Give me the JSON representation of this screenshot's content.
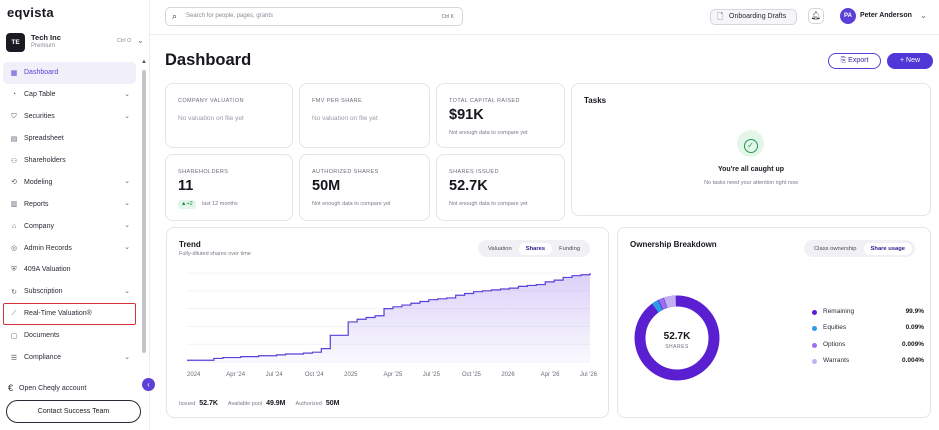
{
  "brand": {
    "logo": "eqvista",
    "accent": "#5b3fd6",
    "primary_button": "#4f37d8"
  },
  "company": {
    "initials": "TE",
    "name": "Tech Inc",
    "plan": "Premium",
    "shortcut": "Ctrl O"
  },
  "sidebar": {
    "items": [
      {
        "label": "Dashboard",
        "icon": "grid-icon",
        "active": true,
        "expandable": false
      },
      {
        "label": "Cap Table",
        "icon": "pie-chart-icon",
        "expandable": true
      },
      {
        "label": "Securities",
        "icon": "securities-icon",
        "expandable": true
      },
      {
        "label": "Spreadsheet",
        "icon": "spreadsheet-icon",
        "expandable": false
      },
      {
        "label": "Shareholders",
        "icon": "users-icon",
        "expandable": false
      },
      {
        "label": "Modeling",
        "icon": "modeling-icon",
        "expandable": true
      },
      {
        "label": "Reports",
        "icon": "reports-icon",
        "expandable": true
      },
      {
        "label": "Company",
        "icon": "company-icon",
        "expandable": true
      },
      {
        "label": "Admin Records",
        "icon": "records-icon",
        "expandable": true
      },
      {
        "label": "409A Valuation",
        "icon": "shield-check-icon",
        "expandable": false
      },
      {
        "label": "Subscription",
        "icon": "subscription-icon",
        "expandable": true
      },
      {
        "label": "Real-Time Valuation®",
        "icon": "line-chart-icon",
        "expandable": false,
        "highlighted": true
      },
      {
        "label": "Documents",
        "icon": "documents-icon",
        "expandable": false
      },
      {
        "label": "Compliance",
        "icon": "compliance-icon",
        "expandable": true
      }
    ],
    "cheqly": "Open Cheqly account",
    "contact_button": "Contact Success Team"
  },
  "topbar": {
    "search_placeholder": "Search for people, pages, grants",
    "search_shortcut": "Ctrl K",
    "drafts_label": "Onboarding Drafts",
    "user_initials": "PA",
    "user_name": "Peter Anderson"
  },
  "main": {
    "title": "Dashboard",
    "export_label": "Export",
    "new_label": "New",
    "stats": {
      "company_valuation": {
        "label": "COMPANY VALUATION",
        "empty": "No valuation on file yet"
      },
      "fmv_per_share": {
        "label": "FMV PER SHARE",
        "empty": "No valuation on file yet"
      },
      "total_capital_raised": {
        "label": "TOTAL CAPITAL RAISED",
        "value": "$91K",
        "note": "Not enough data to compare yet"
      },
      "shareholders": {
        "label": "SHAREHOLDERS",
        "value": "11",
        "badge": "▲+2",
        "note": "last 12 months"
      },
      "authorized_shares": {
        "label": "AUTHORIZED SHARES",
        "value": "50M",
        "note": "Not enough data to compare yet"
      },
      "shares_issued": {
        "label": "SHARES ISSUED",
        "value": "52.7K",
        "note": "Not enough data to compare yet"
      }
    },
    "tasks": {
      "title": "Tasks",
      "message": "You're all caught up",
      "sub": "No tasks need your attention right now"
    },
    "trend": {
      "title": "Trend",
      "subtitle": "Fully-diluted shares over time",
      "tabs": [
        "Valuation",
        "Shares",
        "Funding"
      ],
      "active_tab": "Shares",
      "footer": [
        {
          "label": "Issued",
          "value": "52.7K"
        },
        {
          "label": "Available pool",
          "value": "49.9M"
        },
        {
          "label": "Authorized",
          "value": "50M"
        }
      ]
    },
    "ownership": {
      "title": "Ownership Breakdown",
      "tabs": [
        "Class ownership",
        "Share usage"
      ],
      "active_tab": "Share usage",
      "center_value": "52.7K",
      "center_label": "SHARES",
      "legend": [
        {
          "name": "Remaining",
          "pct": "99.9%",
          "color": "#5a1fd0"
        },
        {
          "name": "Equities",
          "pct": "0.09%",
          "color": "#2e9be6"
        },
        {
          "name": "Options",
          "pct": "0.009%",
          "color": "#9a6ff0"
        },
        {
          "name": "Warrants",
          "pct": "0.004%",
          "color": "#c2b0f4"
        }
      ]
    }
  },
  "chart_data": {
    "type": "area",
    "x_ticks": [
      "2024",
      "Apr '24",
      "Jul '24",
      "Oct '24",
      "2025",
      "Apr '25",
      "Jul '25",
      "Oct '25",
      "2026",
      "Apr '26",
      "Jul '26"
    ],
    "series": [
      {
        "values": [
          0.02,
          0.02,
          0.02,
          0.04,
          0.05,
          0.05,
          0.06,
          0.06,
          0.07,
          0.07,
          0.08,
          0.09,
          0.09,
          0.1,
          0.11,
          0.15,
          0.3,
          0.3,
          0.45,
          0.48,
          0.5,
          0.52,
          0.6,
          0.62,
          0.64,
          0.66,
          0.68,
          0.7,
          0.71,
          0.72,
          0.75,
          0.77,
          0.79,
          0.8,
          0.81,
          0.82,
          0.83,
          0.85,
          0.86,
          0.87,
          0.9,
          0.92,
          0.95,
          0.97,
          0.98,
          1.0
        ]
      }
    ],
    "ylim": [
      0,
      1
    ],
    "grid": true
  }
}
